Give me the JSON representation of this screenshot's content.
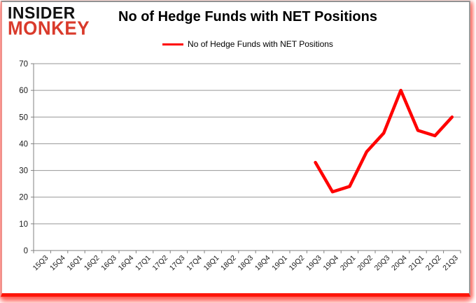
{
  "logo": {
    "line1": "INSIDER",
    "line2": "MONKEY",
    "accent_color": "#d93a2b"
  },
  "header": {
    "title": "No of Hedge Funds with NET Positions"
  },
  "legend": {
    "label": "No of Hedge Funds with NET Positions",
    "line_color": "#ff0000"
  },
  "chart_data": {
    "type": "line",
    "title": "No of Hedge Funds with NET Positions",
    "categories": [
      "15Q3",
      "15Q4",
      "16Q1",
      "16Q2",
      "16Q3",
      "16Q4",
      "17Q1",
      "17Q2",
      "17Q3",
      "17Q4",
      "18Q1",
      "18Q2",
      "18Q3",
      "18Q4",
      "19Q1",
      "19Q2",
      "19Q3",
      "19Q4",
      "20Q1",
      "20Q2",
      "20Q3",
      "20Q4",
      "21Q1",
      "21Q2",
      "21Q3"
    ],
    "series": [
      {
        "name": "No of Hedge Funds with NET Positions",
        "color": "#ff0000",
        "values": [
          null,
          null,
          null,
          null,
          null,
          null,
          null,
          null,
          null,
          null,
          null,
          null,
          null,
          null,
          null,
          null,
          33,
          22,
          24,
          37,
          44,
          60,
          45,
          43,
          50
        ]
      }
    ],
    "xlabel": "",
    "ylabel": "",
    "ylim": [
      0,
      70
    ],
    "ytick_step": 10,
    "grid": true,
    "gridline_color": "#969696",
    "axis_color": "#808080",
    "tick_label_color": "#1a1a1a",
    "legend_position": "top"
  }
}
